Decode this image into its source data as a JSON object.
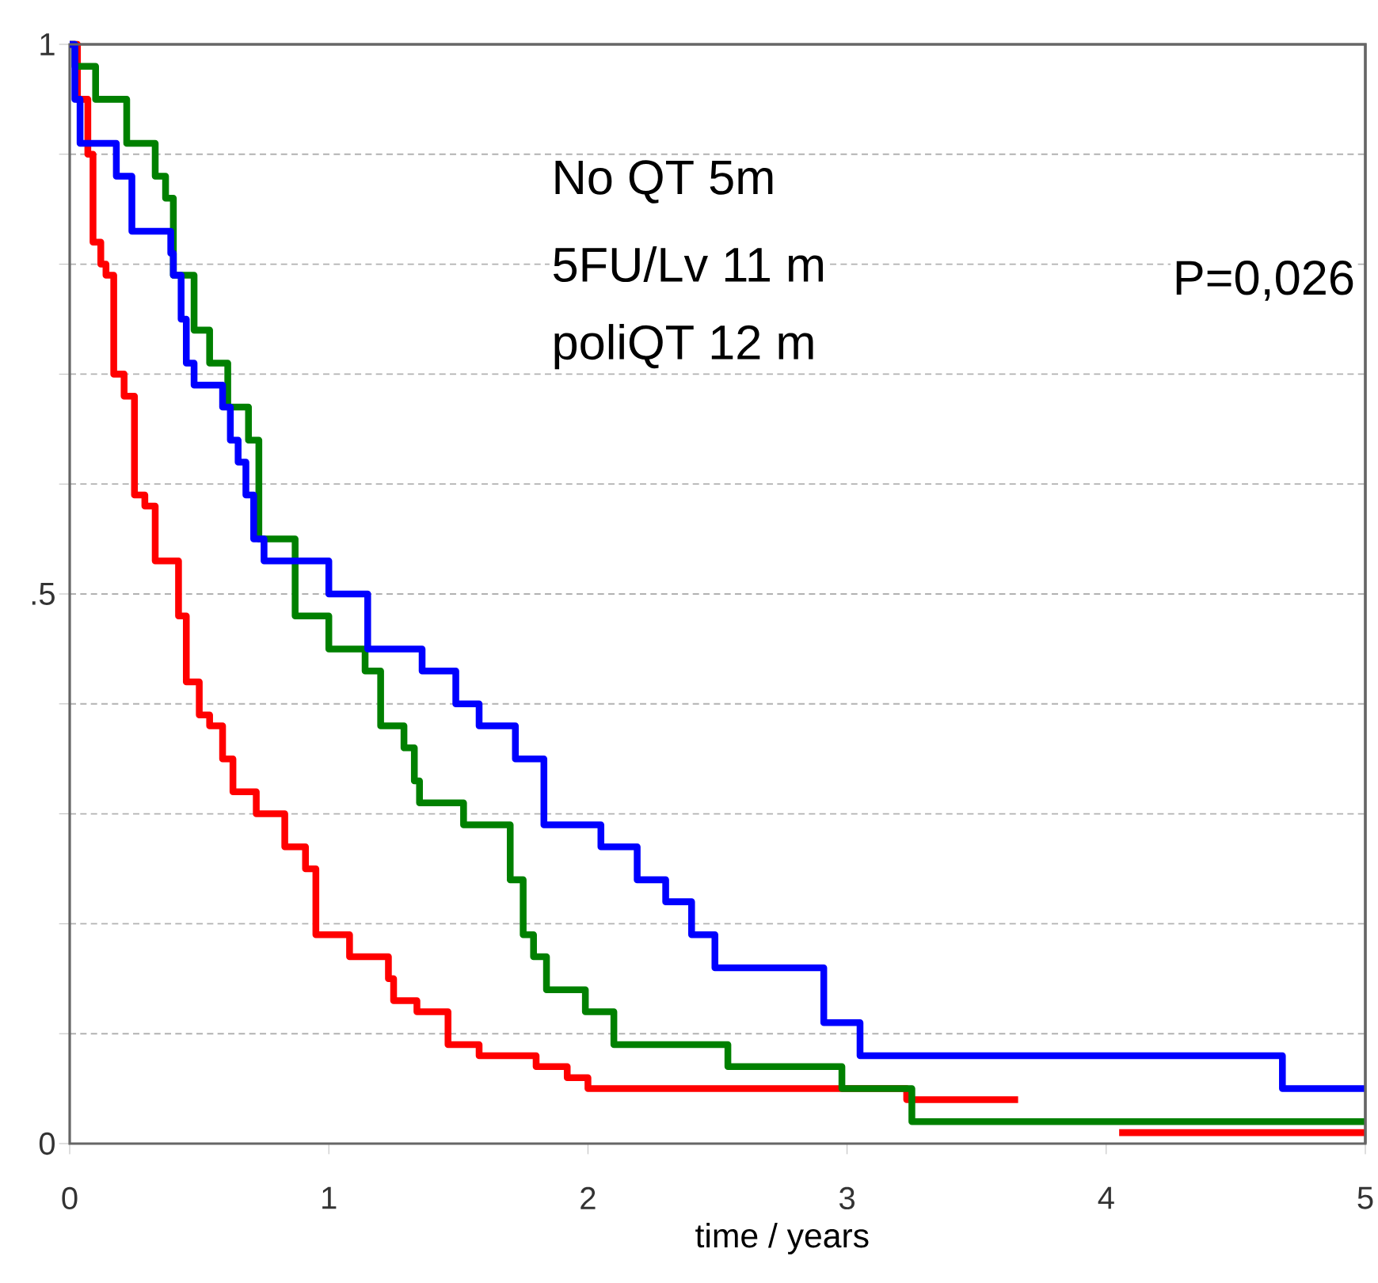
{
  "chart_data": {
    "type": "step",
    "xlabel": "time / years",
    "xlim": [
      0,
      5
    ],
    "xticks": [
      0,
      1,
      2,
      3,
      4,
      5
    ],
    "ylim": [
      0,
      1
    ],
    "yticks": [
      0,
      {
        "value": 0.1,
        "label": null
      },
      {
        "value": 0.2,
        "label": null
      },
      {
        "value": 0.3,
        "label": null
      },
      {
        "value": 0.4,
        "label": null
      },
      {
        "value": 0.5,
        "label": ".5"
      },
      {
        "value": 0.6,
        "label": null
      },
      {
        "value": 0.7,
        "label": null
      },
      {
        "value": 0.8,
        "label": null
      },
      {
        "value": 0.9,
        "label": null
      },
      1
    ],
    "grid": "y",
    "annotations": [
      "No QT 5m",
      "5FU/Lv 11 m",
      "poliQT 12 m",
      "P=0,026"
    ],
    "series": [
      {
        "color": "#ff0000",
        "x": [
          0,
          0.03,
          0.07,
          0.09,
          0.12,
          0.14,
          0.17,
          0.21,
          0.25,
          0.29,
          0.33,
          0.42,
          0.45,
          0.5,
          0.54,
          0.59,
          0.63,
          0.72,
          0.83,
          0.91,
          0.95,
          1.08,
          1.23,
          1.25,
          1.34,
          1.46,
          1.58,
          1.8,
          1.92,
          2.0,
          3.23,
          3.66,
          4.05,
          5
        ],
        "values": [
          1,
          0.95,
          0.9,
          0.82,
          0.8,
          0.79,
          0.7,
          0.68,
          0.59,
          0.58,
          0.53,
          0.48,
          0.42,
          0.39,
          0.38,
          0.35,
          0.32,
          0.3,
          0.27,
          0.25,
          0.19,
          0.17,
          0.15,
          0.13,
          0.12,
          0.09,
          0.08,
          0.07,
          0.06,
          0.05,
          0.04,
          null,
          0.01,
          0.01
        ]
      },
      {
        "color": "#008000",
        "x": [
          0,
          0.02,
          0.1,
          0.22,
          0.33,
          0.37,
          0.4,
          0.48,
          0.54,
          0.61,
          0.69,
          0.73,
          0.87,
          1.0,
          1.14,
          1.2,
          1.29,
          1.33,
          1.35,
          1.52,
          1.7,
          1.75,
          1.79,
          1.84,
          1.99,
          2.1,
          2.54,
          2.98,
          3.25,
          5
        ],
        "values": [
          1,
          0.98,
          0.95,
          0.91,
          0.88,
          0.86,
          0.79,
          0.74,
          0.71,
          0.67,
          0.64,
          0.55,
          0.48,
          0.45,
          0.43,
          0.38,
          0.36,
          0.33,
          0.31,
          0.29,
          0.24,
          0.19,
          0.17,
          0.14,
          0.12,
          0.09,
          0.07,
          0.05,
          0.02,
          0.02
        ]
      },
      {
        "color": "#0000ff",
        "x": [
          0,
          0.02,
          0.04,
          0.18,
          0.24,
          0.39,
          0.4,
          0.43,
          0.45,
          0.48,
          0.59,
          0.62,
          0.65,
          0.68,
          0.71,
          0.75,
          1.0,
          1.15,
          1.36,
          1.49,
          1.58,
          1.72,
          1.83,
          2.05,
          2.19,
          2.3,
          2.4,
          2.49,
          2.91,
          3.05,
          4.68,
          5
        ],
        "values": [
          1,
          0.95,
          0.91,
          0.88,
          0.83,
          0.81,
          0.79,
          0.75,
          0.71,
          0.69,
          0.67,
          0.64,
          0.62,
          0.59,
          0.55,
          0.53,
          0.5,
          0.45,
          0.43,
          0.4,
          0.38,
          0.35,
          0.29,
          0.27,
          0.24,
          0.22,
          0.19,
          0.16,
          0.11,
          0.08,
          0.05,
          0.05
        ]
      }
    ]
  }
}
